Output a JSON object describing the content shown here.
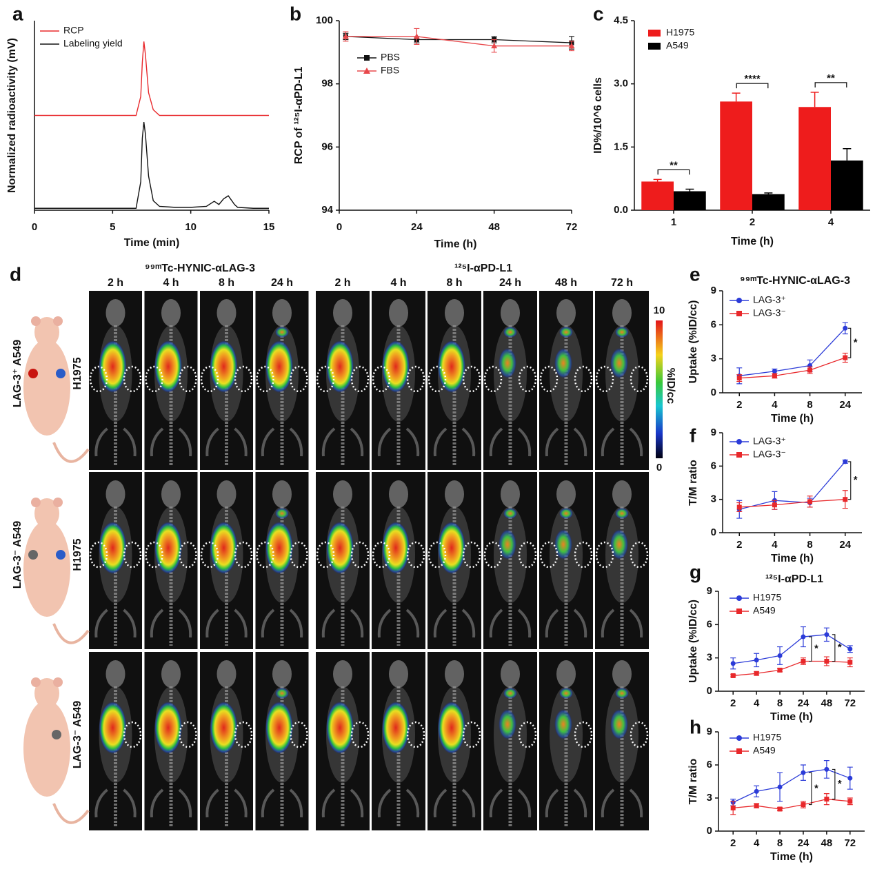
{
  "chart_data": [
    {
      "panel": "a",
      "type": "line",
      "xlabel": "Time (min)",
      "ylabel": "Normalized radioactivity (mV)",
      "x": [
        0,
        1,
        2,
        3,
        4,
        5,
        6,
        6.5,
        6.8,
        6.9,
        7,
        7.1,
        7.3,
        7.6,
        8,
        9,
        10,
        11,
        11.5,
        11.8,
        12.1,
        12.4,
        12.8,
        13,
        14,
        15
      ],
      "xlim": [
        0,
        15
      ],
      "xticks": [
        0,
        5,
        10,
        15
      ],
      "ylim": [
        0,
        1
      ],
      "series": [
        {
          "name": "RCP",
          "color": "#e8282b",
          "values": [
            0.5,
            0.5,
            0.5,
            0.5,
            0.5,
            0.5,
            0.5,
            0.5,
            0.6,
            0.78,
            0.89,
            0.82,
            0.62,
            0.53,
            0.5,
            0.5,
            0.5,
            0.5,
            0.5,
            0.5,
            0.5,
            0.5,
            0.5,
            0.5,
            0.5,
            0.5
          ]
        },
        {
          "name": "Labeling yield",
          "color": "#111111",
          "values": [
            0.01,
            0.01,
            0.01,
            0.01,
            0.01,
            0.01,
            0.01,
            0.01,
            0.15,
            0.38,
            0.465,
            0.4,
            0.18,
            0.05,
            0.02,
            0.015,
            0.015,
            0.02,
            0.047,
            0.03,
            0.06,
            0.076,
            0.03,
            0.015,
            0.01,
            0.01
          ]
        }
      ]
    },
    {
      "panel": "b",
      "type": "line",
      "xlabel": "Time (h)",
      "ylabel": "RCP of ¹²⁵I-αPD-L1",
      "x": [
        2,
        24,
        48,
        72
      ],
      "xlim": [
        0,
        72
      ],
      "xticks": [
        0,
        24,
        48,
        72
      ],
      "ylim": [
        94,
        100
      ],
      "yticks": [
        94,
        96,
        98,
        100
      ],
      "series": [
        {
          "name": "PBS",
          "color": "#111111",
          "marker": "square",
          "values": [
            99.5,
            99.4,
            99.4,
            99.3
          ],
          "errors": [
            0.1,
            0.1,
            0.1,
            0.2
          ]
        },
        {
          "name": "FBS",
          "color": "#e8484b",
          "marker": "triangle",
          "values": [
            99.5,
            99.5,
            99.2,
            99.2
          ],
          "errors": [
            0.15,
            0.25,
            0.2,
            0.15
          ]
        }
      ]
    },
    {
      "panel": "c",
      "type": "bar",
      "xlabel": "Time (h)",
      "ylabel": "ID%/10^6 cells",
      "categories": [
        "1",
        "2",
        "4"
      ],
      "ylim": [
        0,
        4.5
      ],
      "yticks": [
        {
          "value": 0,
          "label": "0.0"
        },
        1.5,
        {
          "value": 3,
          "label": "3.0"
        },
        4.5
      ],
      "series": [
        {
          "name": "H1975",
          "color": "#ee1c1c",
          "values": [
            0.68,
            2.58,
            2.45
          ],
          "errors": [
            0.05,
            0.2,
            0.35
          ]
        },
        {
          "name": "A549",
          "color": "#000000",
          "values": [
            0.45,
            0.38,
            1.18
          ],
          "errors": [
            0.05,
            0.03,
            0.28
          ]
        }
      ],
      "annotations": [
        "**",
        "****",
        "**"
      ]
    },
    {
      "panel": "e",
      "type": "line",
      "title": "⁹⁹ᵐTc-HYNIC-αLAG-3",
      "xlabel": "Time (h)",
      "ylabel": "Uptake (%ID/cc)",
      "categories": [
        "2",
        "4",
        "8",
        "24"
      ],
      "ylim": [
        0,
        9
      ],
      "yticks": [
        0,
        3,
        6,
        9
      ],
      "series": [
        {
          "name": "LAG-3⁺",
          "color": "#2b3bd8",
          "marker": "circle",
          "values": [
            1.5,
            1.9,
            2.4,
            5.7
          ],
          "errors": [
            0.7,
            0.2,
            0.5,
            0.5
          ]
        },
        {
          "name": "LAG-3⁻",
          "color": "#e8282b",
          "marker": "square",
          "values": [
            1.3,
            1.5,
            2.0,
            3.1
          ],
          "errors": [
            0.3,
            0.2,
            0.3,
            0.4
          ]
        }
      ],
      "annotations": [
        "*"
      ]
    },
    {
      "panel": "f",
      "type": "line",
      "xlabel": "Time (h)",
      "ylabel": "T/M ratio",
      "categories": [
        "2",
        "4",
        "8",
        "24"
      ],
      "ylim": [
        0,
        9
      ],
      "yticks": [
        0,
        3,
        6,
        9
      ],
      "series": [
        {
          "name": "LAG-3⁺",
          "color": "#2b3bd8",
          "marker": "circle",
          "values": [
            2.1,
            2.9,
            2.7,
            6.4
          ],
          "errors": [
            0.8,
            0.8,
            0.4,
            0.15
          ]
        },
        {
          "name": "LAG-3⁻",
          "color": "#e8282b",
          "marker": "square",
          "values": [
            2.3,
            2.5,
            2.8,
            3.0
          ],
          "errors": [
            0.4,
            0.4,
            0.5,
            0.8
          ]
        }
      ],
      "annotations": [
        "*"
      ]
    },
    {
      "panel": "g",
      "type": "line",
      "title": "¹²⁵I-αPD-L1",
      "xlabel": "Time (h)",
      "ylabel": "Uptake (%ID/cc)",
      "categories": [
        "2",
        "4",
        "8",
        "24",
        "48",
        "72"
      ],
      "ylim": [
        0,
        9
      ],
      "yticks": [
        0,
        3,
        6,
        9
      ],
      "series": [
        {
          "name": "H1975",
          "color": "#2b3bd8",
          "marker": "circle",
          "values": [
            2.5,
            2.8,
            3.2,
            4.9,
            5.1,
            3.8
          ],
          "errors": [
            0.5,
            0.6,
            0.8,
            0.9,
            0.6,
            0.3
          ]
        },
        {
          "name": "A549",
          "color": "#e8282b",
          "marker": "square",
          "values": [
            1.4,
            1.6,
            1.9,
            2.7,
            2.7,
            2.6
          ],
          "errors": [
            0.1,
            0.15,
            0.15,
            0.3,
            0.4,
            0.4
          ]
        }
      ],
      "annotations": [
        "*",
        "*"
      ]
    },
    {
      "panel": "h",
      "type": "line",
      "xlabel": "Time (h)",
      "ylabel": "T/M ratio",
      "categories": [
        "2",
        "4",
        "8",
        "24",
        "48",
        "72"
      ],
      "ylim": [
        0,
        9
      ],
      "yticks": [
        0,
        3,
        6,
        9
      ],
      "series": [
        {
          "name": "H1975",
          "color": "#2b3bd8",
          "marker": "circle",
          "values": [
            2.6,
            3.6,
            4.0,
            5.3,
            5.6,
            4.8
          ],
          "errors": [
            0.3,
            0.5,
            1.3,
            0.7,
            0.8,
            1.0
          ]
        },
        {
          "name": "A549",
          "color": "#e8282b",
          "marker": "square",
          "values": [
            2.1,
            2.3,
            2.0,
            2.4,
            2.9,
            2.7
          ],
          "errors": [
            0.6,
            0.2,
            0.15,
            0.3,
            0.5,
            0.3
          ]
        }
      ],
      "annotations": [
        "*",
        "*"
      ]
    }
  ],
  "panel_d": {
    "panel": "d",
    "tracers": [
      {
        "name": "⁹⁹ᵐTc-HYNIC-αLAG-3",
        "times": [
          "2 h",
          "4 h",
          "8 h",
          "24 h"
        ]
      },
      {
        "name": "¹²⁵I-αPD-L1",
        "times": [
          "2 h",
          "4 h",
          "8 h",
          "24 h",
          "48 h",
          "72 h"
        ]
      }
    ],
    "rows": [
      {
        "left": "LAG-3⁺ A549",
        "right": "H1975"
      },
      {
        "left": "LAG-3⁻ A549",
        "right": "H1975"
      },
      {
        "right": "LAG-3⁻ A549"
      }
    ],
    "colorbar": {
      "max": 10,
      "min": 0,
      "label": "%ID/cc"
    }
  }
}
